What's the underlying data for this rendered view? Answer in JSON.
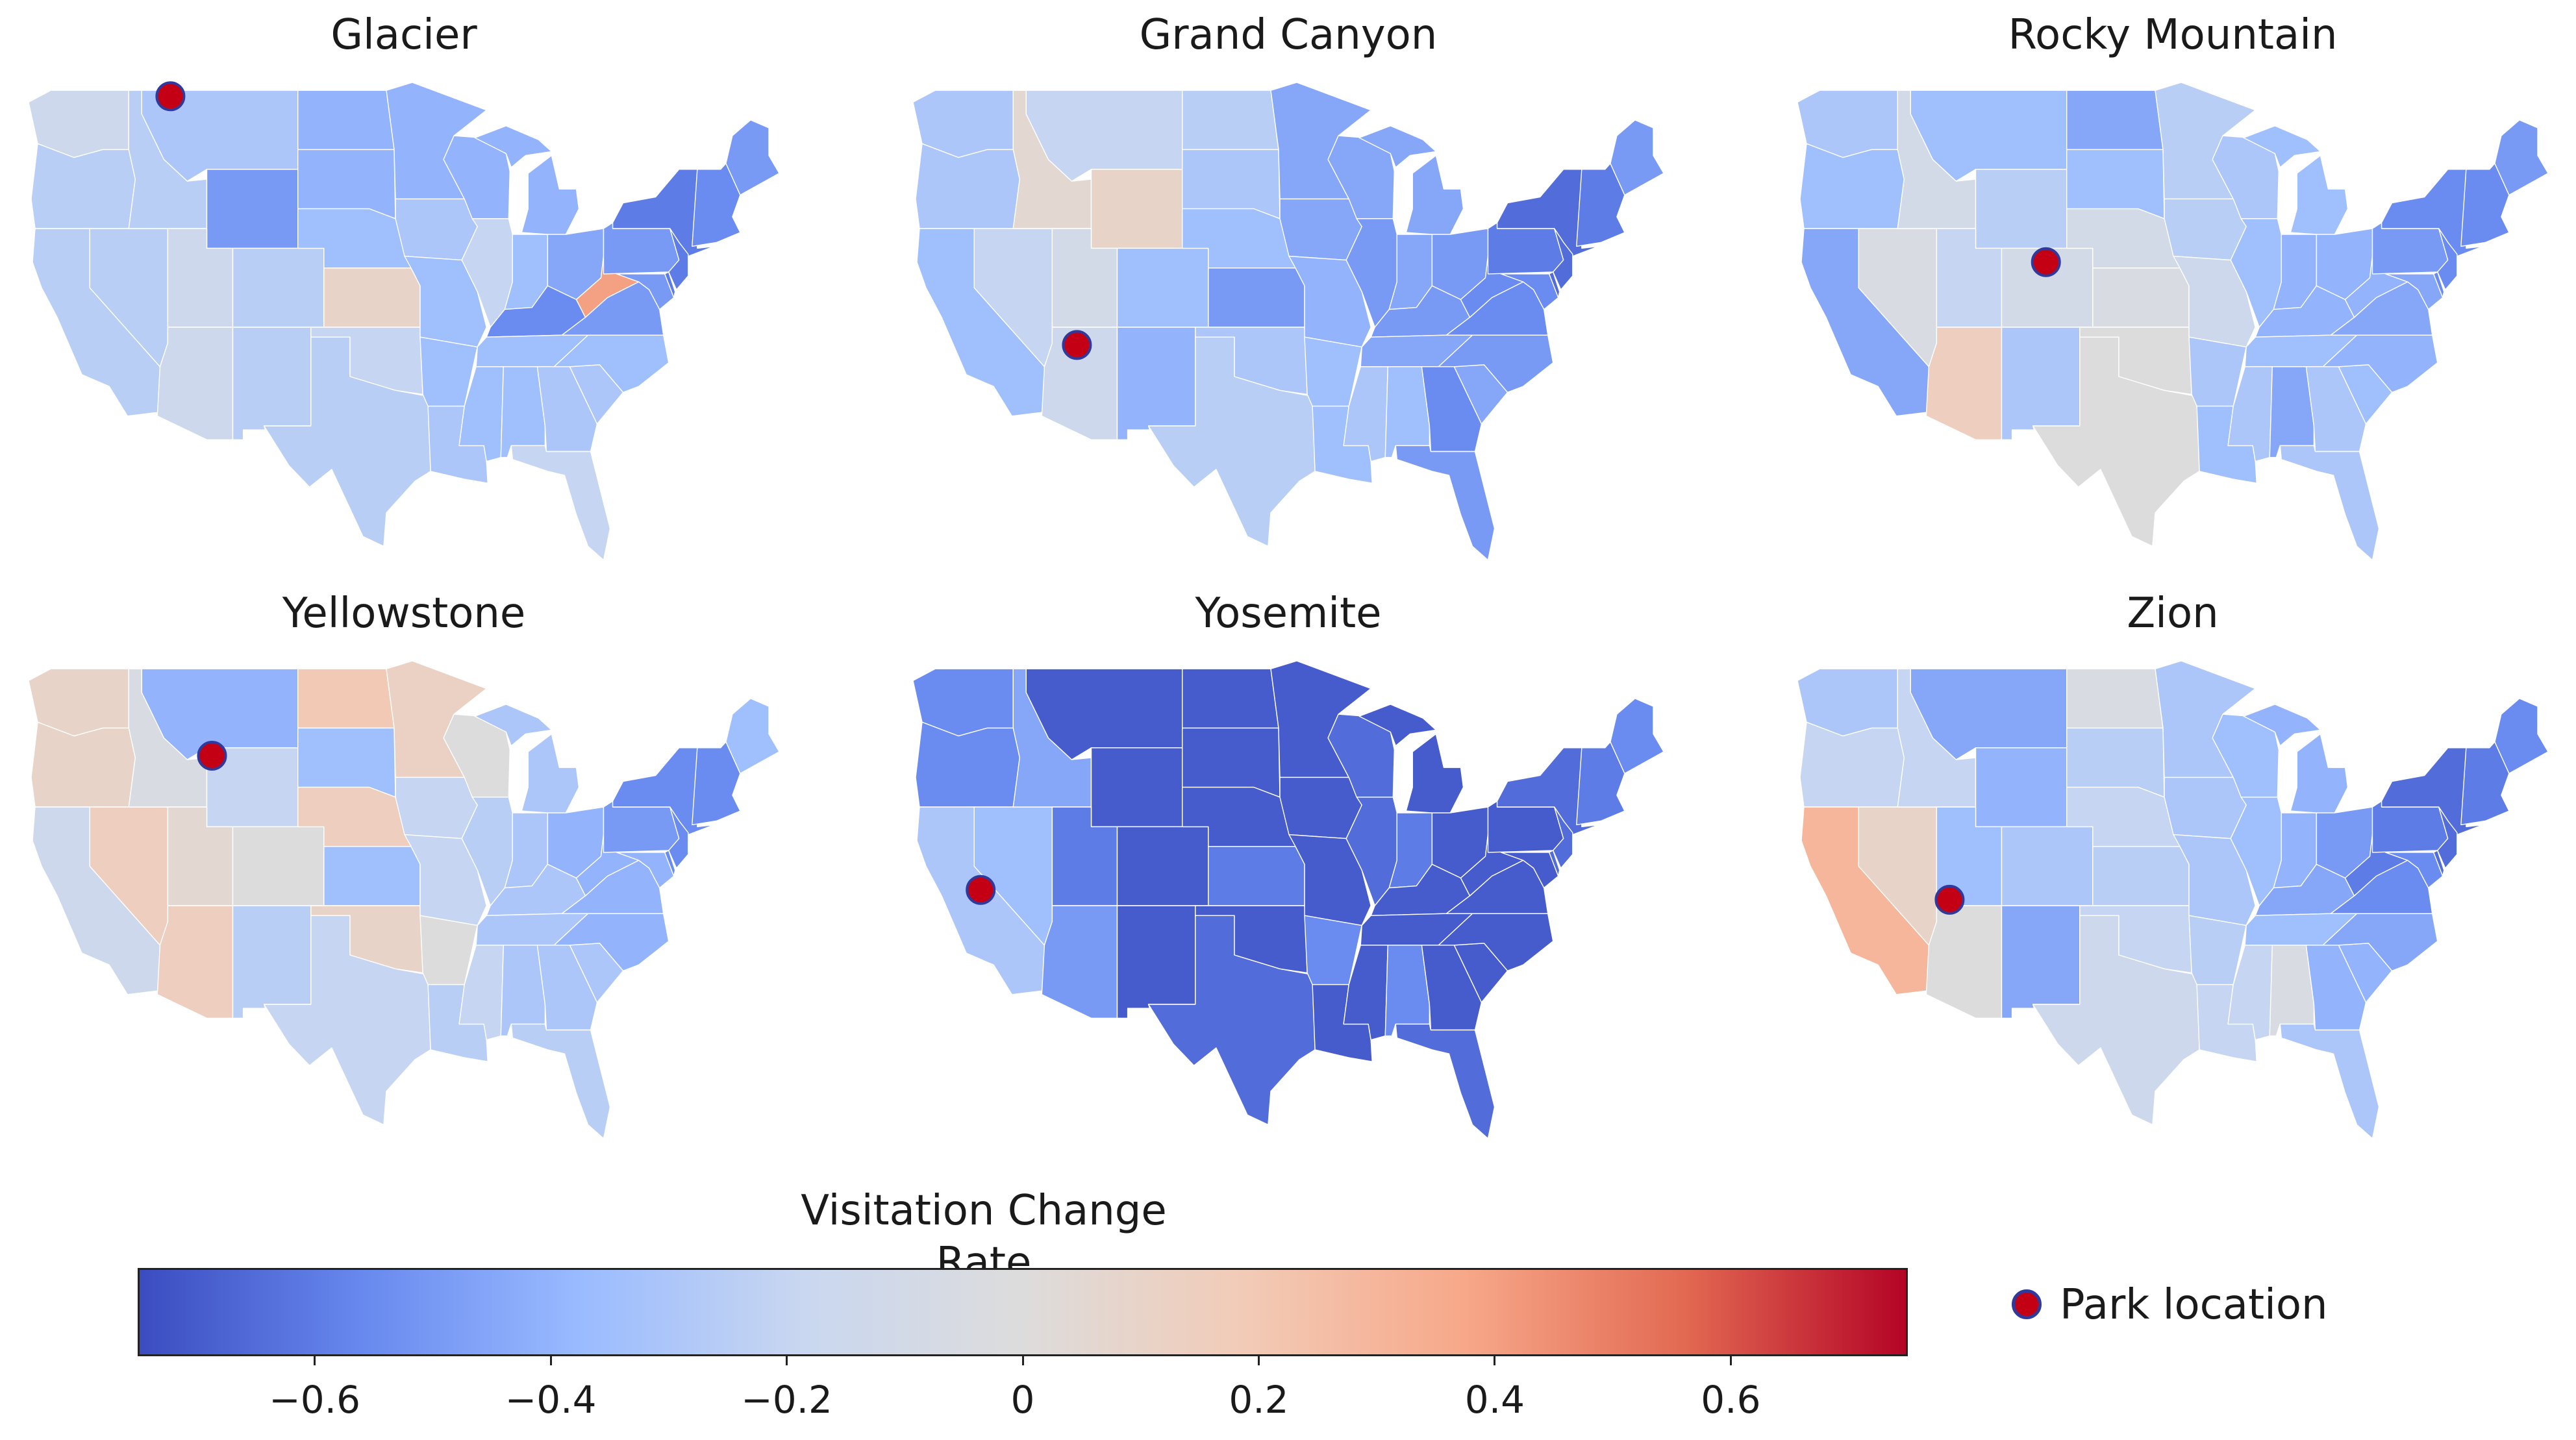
{
  "colorbar": {
    "title": "Visitation Change Rate",
    "range": [
      -0.75,
      0.75
    ],
    "ticks": [
      {
        "value": -0.6,
        "label": "−0.6"
      },
      {
        "value": -0.4,
        "label": "−0.4"
      },
      {
        "value": -0.2,
        "label": "−0.2"
      },
      {
        "value": 0,
        "label": "0"
      },
      {
        "value": 0.2,
        "label": "0.2"
      },
      {
        "value": 0.4,
        "label": "0.4"
      },
      {
        "value": 0.6,
        "label": "0.6"
      }
    ],
    "colors": [
      "#3b4cc0",
      "#6788ee",
      "#9abbff",
      "#c9d7f0",
      "#dddcdc",
      "#f2cbb7",
      "#f7a889",
      "#e26952",
      "#b40426"
    ]
  },
  "legend": {
    "label": "Park location",
    "marker_color": "#c40014",
    "marker_edge": "#2f3a9c"
  },
  "panels": [
    {
      "title": "Glacier",
      "park": "Glacier",
      "park_lonlat": [
        -113.8,
        48.7
      ],
      "default_rate": -0.25,
      "rates": {
        "MT": -0.3,
        "WA": -0.15,
        "ID": -0.25,
        "OR": -0.25,
        "CA": -0.25,
        "NV": -0.25,
        "UT": -0.15,
        "AZ": -0.15,
        "WY": -0.5,
        "CO": -0.25,
        "NM": -0.25,
        "ND": -0.4,
        "SD": -0.4,
        "NE": -0.35,
        "KS": 0.1,
        "OK": -0.2,
        "TX": -0.25,
        "MN": -0.4,
        "IA": -0.3,
        "MO": -0.35,
        "AR": -0.35,
        "LA": -0.3,
        "WI": -0.4,
        "IL": -0.2,
        "MS": -0.35,
        "MI": -0.4,
        "IN": -0.35,
        "OH": -0.45,
        "KY": -0.55,
        "TN": -0.35,
        "AL": -0.35,
        "GA": -0.3,
        "FL": -0.2,
        "WV": 0.4,
        "VA": -0.5,
        "NC": -0.35,
        "SC": -0.3,
        "PA": -0.5,
        "NY": -0.6,
        "NE_US": -0.55,
        "ME": -0.5
      }
    },
    {
      "title": "Grand Canyon",
      "park": "Grand Canyon",
      "park_lonlat": [
        -112.1,
        36.1
      ],
      "default_rate": -0.3,
      "rates": {
        "MT": -0.2,
        "WA": -0.3,
        "ID": 0.05,
        "OR": -0.3,
        "CA": -0.35,
        "NV": -0.2,
        "UT": -0.1,
        "AZ": -0.15,
        "WY": 0.1,
        "CO": -0.35,
        "NM": -0.4,
        "ND": -0.25,
        "SD": -0.3,
        "NE": -0.35,
        "KS": -0.5,
        "OK": -0.3,
        "TX": -0.25,
        "MN": -0.45,
        "IA": -0.45,
        "MO": -0.4,
        "AR": -0.35,
        "LA": -0.35,
        "WI": -0.45,
        "IL": -0.5,
        "MS": -0.3,
        "MI": -0.45,
        "IN": -0.45,
        "OH": -0.5,
        "KY": -0.5,
        "TN": -0.45,
        "AL": -0.35,
        "GA": -0.55,
        "FL": -0.5,
        "WV": -0.55,
        "VA": -0.55,
        "NC": -0.5,
        "SC": -0.45,
        "PA": -0.6,
        "NY": -0.65,
        "NE_US": -0.6,
        "ME": -0.5
      }
    },
    {
      "title": "Rocky Mountain",
      "park": "Rocky Mountain",
      "park_lonlat": [
        -105.6,
        40.3
      ],
      "default_rate": -0.3,
      "rates": {
        "MT": -0.35,
        "WA": -0.3,
        "ID": -0.1,
        "OR": -0.35,
        "CA": -0.45,
        "NV": -0.05,
        "UT": -0.2,
        "AZ": 0.15,
        "WY": -0.25,
        "CO": -0.1,
        "NM": -0.3,
        "ND": -0.45,
        "SD": -0.35,
        "NE": -0.1,
        "KS": -0.05,
        "OK": 0.0,
        "TX": 0.0,
        "MN": -0.25,
        "IA": -0.25,
        "MO": -0.15,
        "AR": -0.3,
        "LA": -0.35,
        "WI": -0.3,
        "IL": -0.35,
        "MS": -0.3,
        "MI": -0.35,
        "IN": -0.4,
        "OH": -0.4,
        "KY": -0.4,
        "TN": -0.35,
        "AL": -0.45,
        "GA": -0.3,
        "FL": -0.3,
        "WV": -0.4,
        "VA": -0.45,
        "NC": -0.4,
        "SC": -0.35,
        "PA": -0.5,
        "NY": -0.55,
        "NE_US": -0.55,
        "ME": -0.5
      }
    },
    {
      "title": "Yellowstone",
      "park": "Yellowstone",
      "park_lonlat": [
        -110.6,
        44.6
      ],
      "default_rate": -0.2,
      "rates": {
        "MT": -0.4,
        "WA": 0.1,
        "ID": -0.05,
        "OR": 0.1,
        "CA": -0.15,
        "NV": 0.15,
        "UT": 0.05,
        "AZ": 0.15,
        "WY": -0.2,
        "CO": 0.0,
        "NM": -0.25,
        "ND": 0.2,
        "SD": -0.35,
        "NE": 0.15,
        "KS": -0.35,
        "OK": 0.1,
        "TX": -0.2,
        "MN": 0.12,
        "IA": -0.2,
        "MO": -0.2,
        "AR": 0.0,
        "LA": -0.25,
        "WI": 0.0,
        "IL": -0.25,
        "MS": -0.2,
        "MI": -0.3,
        "IN": -0.3,
        "OH": -0.4,
        "KY": -0.3,
        "TN": -0.3,
        "AL": -0.3,
        "GA": -0.3,
        "FL": -0.25,
        "WV": -0.4,
        "VA": -0.4,
        "NC": -0.4,
        "SC": -0.3,
        "PA": -0.5,
        "NY": -0.55,
        "NE_US": -0.55,
        "ME": -0.35
      }
    },
    {
      "title": "Yosemite",
      "park": "Yosemite",
      "park_lonlat": [
        -119.5,
        37.8
      ],
      "default_rate": -0.7,
      "rates": {
        "MT": -0.7,
        "WA": -0.55,
        "ID": -0.45,
        "OR": -0.55,
        "CA": -0.3,
        "NV": -0.35,
        "UT": -0.6,
        "AZ": -0.5,
        "WY": -0.7,
        "CO": -0.7,
        "NM": -0.7,
        "ND": -0.7,
        "SD": -0.7,
        "NE": -0.7,
        "KS": -0.6,
        "OK": -0.7,
        "TX": -0.65,
        "MN": -0.7,
        "IA": -0.7,
        "MO": -0.7,
        "AR": -0.55,
        "LA": -0.7,
        "WI": -0.65,
        "IL": -0.65,
        "MS": -0.7,
        "MI": -0.7,
        "IN": -0.6,
        "OH": -0.7,
        "KY": -0.7,
        "TN": -0.7,
        "AL": -0.55,
        "GA": -0.7,
        "FL": -0.65,
        "WV": -0.7,
        "VA": -0.7,
        "NC": -0.7,
        "SC": -0.7,
        "PA": -0.7,
        "NY": -0.65,
        "NE_US": -0.6,
        "ME": -0.55
      }
    },
    {
      "title": "Zion",
      "park": "Zion",
      "park_lonlat": [
        -113.0,
        37.3
      ],
      "default_rate": -0.25,
      "rates": {
        "MT": -0.45,
        "WA": -0.3,
        "ID": -0.2,
        "OR": -0.2,
        "CA": 0.3,
        "NV": 0.1,
        "UT": -0.35,
        "AZ": 0.0,
        "WY": -0.4,
        "CO": -0.3,
        "NM": -0.45,
        "ND": -0.05,
        "SD": -0.25,
        "NE": -0.2,
        "KS": -0.25,
        "OK": -0.2,
        "TX": -0.15,
        "MN": -0.3,
        "IA": -0.3,
        "MO": -0.3,
        "AR": -0.25,
        "LA": -0.2,
        "WI": -0.35,
        "IL": -0.35,
        "MS": -0.2,
        "MI": -0.4,
        "IN": -0.4,
        "OH": -0.5,
        "KY": -0.45,
        "TN": -0.35,
        "AL": -0.05,
        "GA": -0.4,
        "FL": -0.3,
        "WV": -0.6,
        "VA": -0.55,
        "NC": -0.45,
        "SC": -0.4,
        "PA": -0.6,
        "NY": -0.65,
        "NE_US": -0.6,
        "ME": -0.55
      }
    }
  ]
}
